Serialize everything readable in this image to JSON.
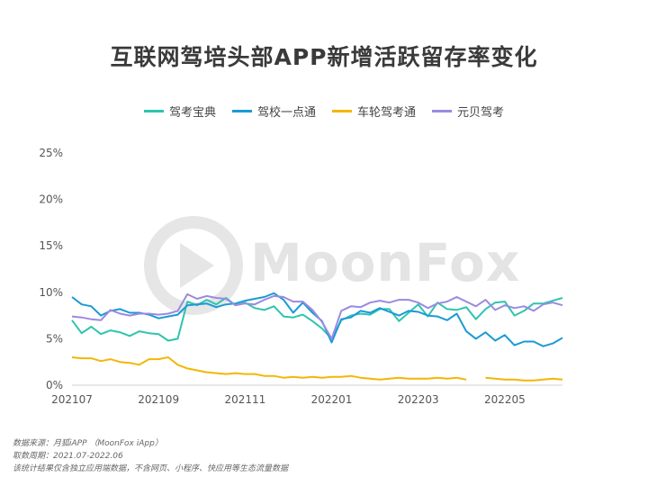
{
  "title": "互联网驾培头部APP新增活跃留存率变化",
  "watermark": "MoonFox",
  "footer": {
    "line1": "数据来源：月狐iAPP （MoonFox iApp）",
    "line2": "取数周期：2021.07-2022.06",
    "line3": "该统计结果仅含独立应用端数据，不含网页、小程序、快应用等生态流量数据"
  },
  "colors": {
    "jiakao_baodian": "#2ec4b0",
    "jiaxiao_yidiantong": "#1a9ad6",
    "chelun_jiakaotong": "#f2b705",
    "yuanbei_jiakao": "#9b8ae0"
  },
  "chart_data": {
    "type": "line",
    "xlabel": "",
    "ylabel": "",
    "ylim": [
      0,
      25
    ],
    "y_ticks": [
      "0%",
      "5%",
      "10%",
      "15%",
      "20%",
      "25%"
    ],
    "x_ticks": [
      "202107",
      "202109",
      "202111",
      "202201",
      "202203",
      "202205"
    ],
    "legend_position": "top-center",
    "grid": false,
    "x_unit": "week",
    "series": [
      {
        "name": "驾考宝典",
        "values": [
          7.0,
          5.6,
          6.3,
          5.5,
          5.9,
          5.7,
          5.3,
          5.8,
          5.6,
          5.5,
          4.8,
          5.0,
          9.0,
          8.6,
          9.2,
          8.7,
          9.4,
          8.6,
          8.9,
          8.3,
          8.1,
          8.5,
          7.4,
          7.3,
          7.6,
          6.9,
          6.1,
          5.0,
          7.0,
          7.5,
          7.7,
          7.6,
          8.2,
          8.2,
          6.9,
          7.8,
          8.7,
          7.4,
          8.9,
          8.2,
          8.1,
          8.4,
          7.1,
          8.2,
          8.9,
          9.0,
          7.5,
          8.0,
          8.8,
          8.8,
          9.1,
          9.4
        ]
      },
      {
        "name": "驾校一点通",
        "values": [
          9.5,
          8.7,
          8.5,
          7.5,
          8.0,
          8.2,
          7.8,
          7.8,
          7.6,
          7.2,
          7.4,
          7.6,
          8.6,
          8.7,
          8.8,
          8.4,
          8.7,
          8.8,
          9.1,
          9.3,
          9.5,
          9.9,
          9.2,
          7.8,
          8.9,
          7.8,
          6.9,
          4.6,
          7.1,
          7.3,
          8.0,
          7.8,
          8.3,
          7.9,
          7.5,
          8.0,
          7.9,
          7.5,
          7.4,
          7.0,
          7.7,
          5.8,
          5.0,
          5.7,
          4.8,
          5.4,
          4.3,
          4.7,
          4.7,
          4.2,
          4.5,
          5.1
        ]
      },
      {
        "name": "车轮驾考通",
        "values": [
          3.0,
          2.9,
          2.9,
          2.6,
          2.8,
          2.5,
          2.4,
          2.2,
          2.8,
          2.8,
          3.0,
          2.2,
          1.8,
          1.6,
          1.4,
          1.3,
          1.2,
          1.3,
          1.2,
          1.2,
          1.0,
          1.0,
          0.8,
          0.9,
          0.8,
          0.9,
          0.8,
          0.9,
          0.9,
          1.0,
          0.8,
          0.7,
          0.6,
          0.7,
          0.8,
          0.7,
          0.7,
          0.7,
          0.8,
          0.7,
          0.8,
          0.6,
          null,
          0.8,
          0.7,
          0.6,
          0.6,
          0.5,
          0.5,
          0.6,
          0.7,
          0.6
        ]
      },
      {
        "name": "元贝驾考",
        "values": [
          7.4,
          7.3,
          7.1,
          7.0,
          8.1,
          7.7,
          7.5,
          7.7,
          7.7,
          7.6,
          7.7,
          8.0,
          9.8,
          9.3,
          9.6,
          9.4,
          9.3,
          8.6,
          8.8,
          8.7,
          9.2,
          9.6,
          9.5,
          9.0,
          9.0,
          8.1,
          6.8,
          5.0,
          8.0,
          8.5,
          8.4,
          8.9,
          9.1,
          8.9,
          9.2,
          9.2,
          8.9,
          8.3,
          8.8,
          9.0,
          9.5,
          9.0,
          8.5,
          9.2,
          8.1,
          8.6,
          8.3,
          8.5,
          8.0,
          8.7,
          8.9,
          8.6
        ]
      }
    ]
  }
}
